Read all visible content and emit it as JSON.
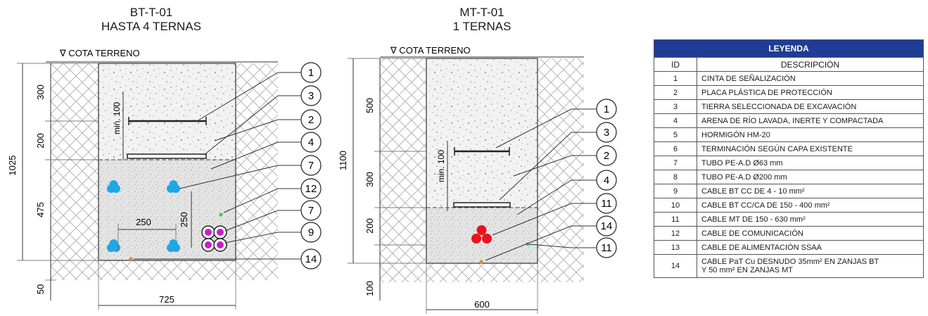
{
  "left": {
    "title_line1": "BT-T-01",
    "title_line2": "HASTA 4 TERNAS",
    "cota": "∇ COTA TERRENO",
    "dims": {
      "d1025": "1025",
      "d300": "300",
      "d200": "200",
      "d475": "475",
      "d50": "50",
      "d725": "725",
      "d250h": "250",
      "d250v": "250",
      "min100": "min. 100"
    },
    "callouts": [
      "1",
      "3",
      "2",
      "4",
      "7",
      "12",
      "7",
      "9",
      "14"
    ]
  },
  "right": {
    "title_line1": "MT-T-01",
    "title_line2": "1 TERNAS",
    "cota": "∇ COTA TERRENO",
    "dims": {
      "d1100": "1100",
      "d500": "500",
      "d300": "300",
      "d200": "200",
      "d100": "100",
      "d600": "600",
      "min100": "min. 100"
    },
    "callouts": [
      "1",
      "3",
      "2",
      "4",
      "11",
      "14",
      "11"
    ]
  },
  "legend": {
    "title": "LEYENDA",
    "col_id": "ID",
    "col_desc": "DESCRIPCIÓN",
    "rows": [
      {
        "id": "1",
        "desc": "CINTA DE SEÑALIZACIÓN"
      },
      {
        "id": "2",
        "desc": "PLACA PLÁSTICA DE PROTECCIÓN"
      },
      {
        "id": "3",
        "desc": "TIERRA SELECCIONADA DE EXCAVACIÓN"
      },
      {
        "id": "4",
        "desc": "ARENA DE RÍO LAVADA, INERTE Y COMPACTADA"
      },
      {
        "id": "5",
        "desc": "HORMIGÓN HM-20"
      },
      {
        "id": "6",
        "desc": "TERMINACIÓN SEGÚN CAPA EXISTENTE"
      },
      {
        "id": "7",
        "desc": "TUBO PE-A.D Ø63 mm"
      },
      {
        "id": "8",
        "desc": "TUBO PE-A.D Ø200 mm"
      },
      {
        "id": "9",
        "desc": "CABLE BT CC DE 4 - 10 mm²"
      },
      {
        "id": "10",
        "desc": "CABLE BT CC/CA DE 150 - 400 mm²"
      },
      {
        "id": "11",
        "desc": "CABLE MT DE 150 - 630 mm²"
      },
      {
        "id": "12",
        "desc": "CABLE DE COMUNICACIÓN"
      },
      {
        "id": "13",
        "desc": "CABLE DE ALIMENTACIÓN SSAA"
      },
      {
        "id": "14",
        "desc": "CABLE PaT Cu DESNUDO 35mm² EN ZANJAS BT",
        "desc2": "Y 50 mm² EN ZANJAS MT"
      }
    ]
  },
  "colors": {
    "header": "#1f3c96",
    "mt_cable": "#e8141c",
    "bt_cable": "#c51fc9",
    "tube": "#1fa7e6",
    "earth": "#d9892a",
    "comm": "#2fcf4a"
  }
}
